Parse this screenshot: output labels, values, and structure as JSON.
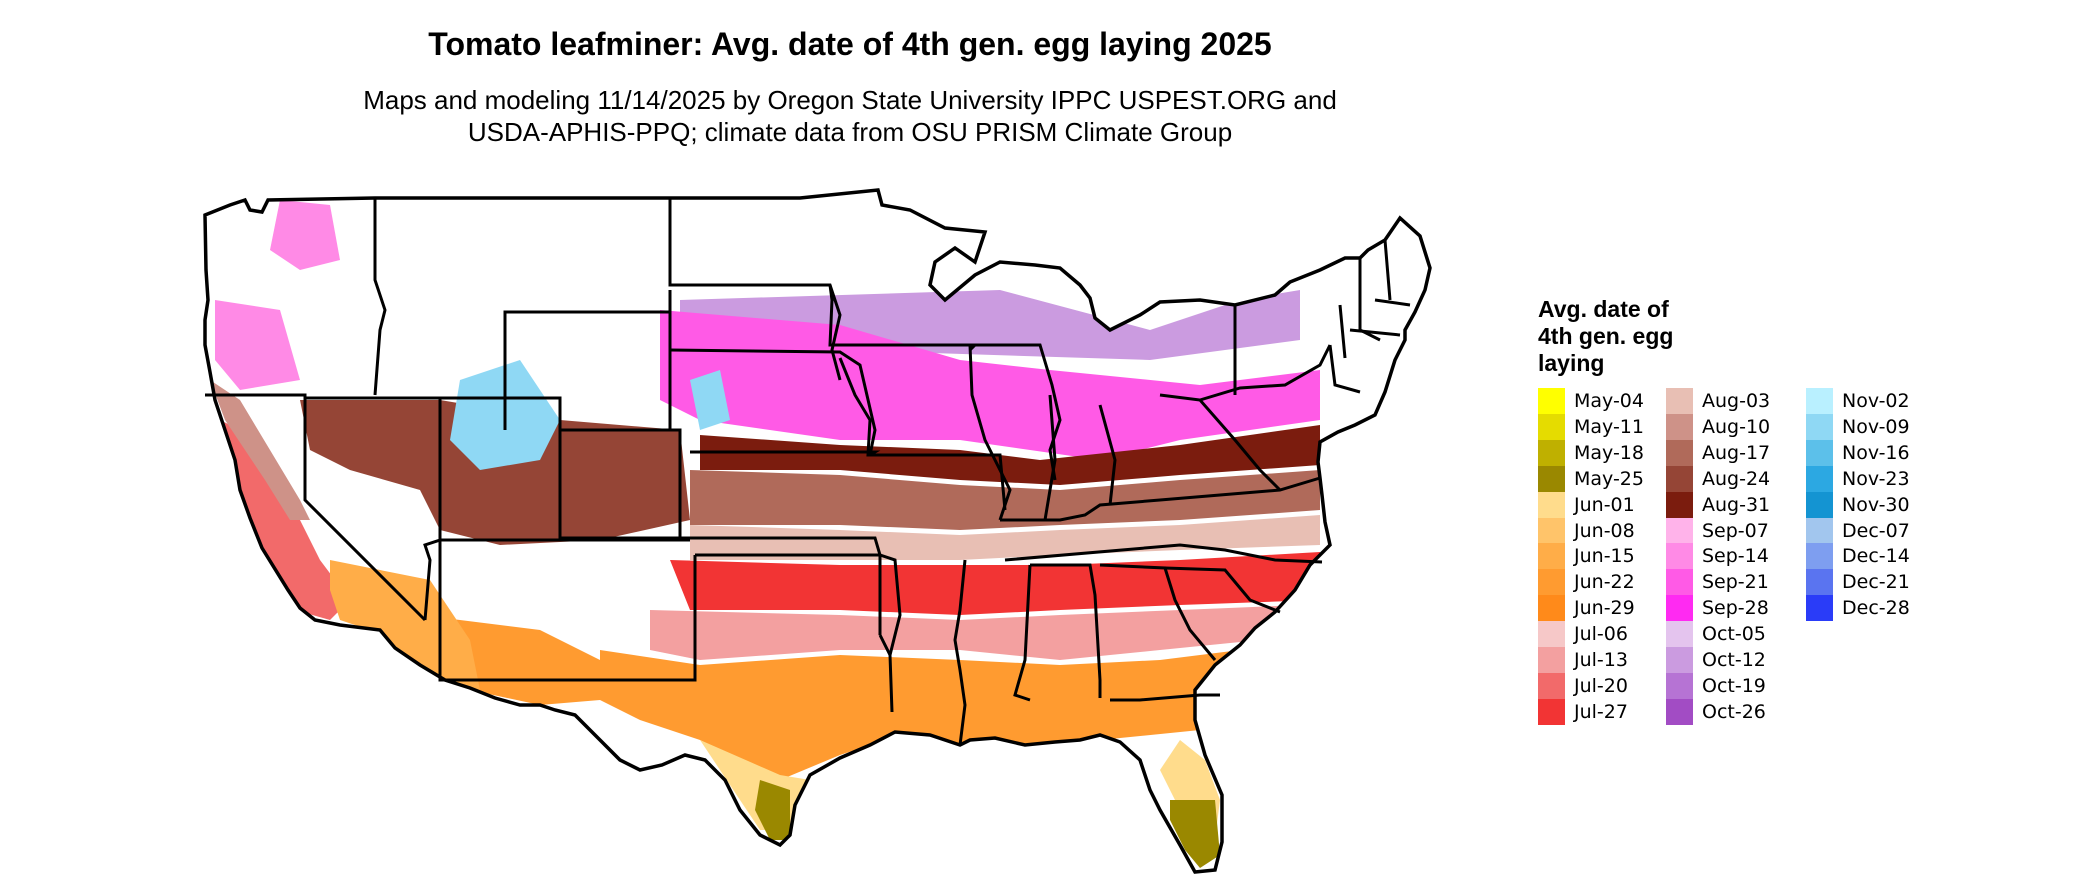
{
  "title": "Tomato leafminer: Avg. date of 4th gen. egg laying 2025",
  "subtitle_lines": [
    "Maps and modeling 11/14/2025 by Oregon State University IPPC USPEST.ORG and",
    "USDA-APHIS-PPQ; climate data from OSU PRISM Climate Group"
  ],
  "legend": {
    "title_lines": [
      "Avg. date of",
      "4th gen. egg",
      "laying"
    ],
    "items": [
      {
        "label": "May-04",
        "color": "#FFFF00"
      },
      {
        "label": "May-11",
        "color": "#E5DC00"
      },
      {
        "label": "May-18",
        "color": "#BFB000"
      },
      {
        "label": "May-25",
        "color": "#9A8800"
      },
      {
        "label": "Jun-01",
        "color": "#FFDC8C"
      },
      {
        "label": "Jun-08",
        "color": "#FFC46A"
      },
      {
        "label": "Jun-15",
        "color": "#FFAD48"
      },
      {
        "label": "Jun-22",
        "color": "#FF9B30"
      },
      {
        "label": "Jun-29",
        "color": "#FF8A1A"
      },
      {
        "label": "Jul-06",
        "color": "#F6C8C8"
      },
      {
        "label": "Jul-13",
        "color": "#F3A0A0"
      },
      {
        "label": "Jul-20",
        "color": "#F26A6A"
      },
      {
        "label": "Jul-27",
        "color": "#F23434"
      },
      {
        "label": "Aug-03",
        "color": "#E8BFB4"
      },
      {
        "label": "Aug-10",
        "color": "#CE9288"
      },
      {
        "label": "Aug-17",
        "color": "#B06A5A"
      },
      {
        "label": "Aug-24",
        "color": "#954536"
      },
      {
        "label": "Aug-31",
        "color": "#7B1C0E"
      },
      {
        "label": "Sep-07",
        "color": "#FFB3EA"
      },
      {
        "label": "Sep-14",
        "color": "#FF8AE6"
      },
      {
        "label": "Sep-21",
        "color": "#FF5AE6"
      },
      {
        "label": "Sep-28",
        "color": "#FF2AF2"
      },
      {
        "label": "Oct-05",
        "color": "#E4C4EE"
      },
      {
        "label": "Oct-12",
        "color": "#CB9BE0"
      },
      {
        "label": "Oct-19",
        "color": "#B673D4"
      },
      {
        "label": "Oct-26",
        "color": "#A24CC4"
      },
      {
        "label": "Nov-02",
        "color": "#B9F0FF"
      },
      {
        "label": "Nov-09",
        "color": "#8FD8F4"
      },
      {
        "label": "Nov-16",
        "color": "#5CC0EA"
      },
      {
        "label": "Nov-23",
        "color": "#2CA8E2"
      },
      {
        "label": "Nov-30",
        "color": "#1494D2"
      },
      {
        "label": "Dec-07",
        "color": "#A2C6EE"
      },
      {
        "label": "Dec-14",
        "color": "#7E9EF0"
      },
      {
        "label": "Dec-21",
        "color": "#5A74F0"
      },
      {
        "label": "Dec-28",
        "color": "#2A3CF8"
      }
    ]
  },
  "map": {
    "outline_color": "#000000",
    "no_data_color": "#FFFFFF",
    "zones": [
      {
        "name": "great-lakes-north",
        "legend": "Oct-12"
      },
      {
        "name": "north-belt",
        "legend": "Sep-21"
      },
      {
        "name": "upper-mid",
        "legend": "Aug-31"
      },
      {
        "name": "mid-belt",
        "legend": "Aug-17"
      },
      {
        "name": "mid-south",
        "legend": "Aug-03"
      },
      {
        "name": "south-belt",
        "legend": "Jul-27"
      },
      {
        "name": "south-2",
        "legend": "Jul-13"
      },
      {
        "name": "gulf-belt",
        "legend": "Jun-22"
      },
      {
        "name": "deep-south",
        "legend": "Jun-01"
      },
      {
        "name": "southern-tips",
        "legend": "May-25"
      },
      {
        "name": "california-central",
        "legend": "Jul-20"
      },
      {
        "name": "california-coast",
        "legend": "Aug-10"
      },
      {
        "name": "desert-southwest",
        "legend": "Jun-15"
      },
      {
        "name": "west-interior",
        "legend": "Aug-24"
      },
      {
        "name": "northwest",
        "legend": "Sep-14"
      },
      {
        "name": "high-elevation",
        "legend": "Nov-09"
      }
    ]
  }
}
